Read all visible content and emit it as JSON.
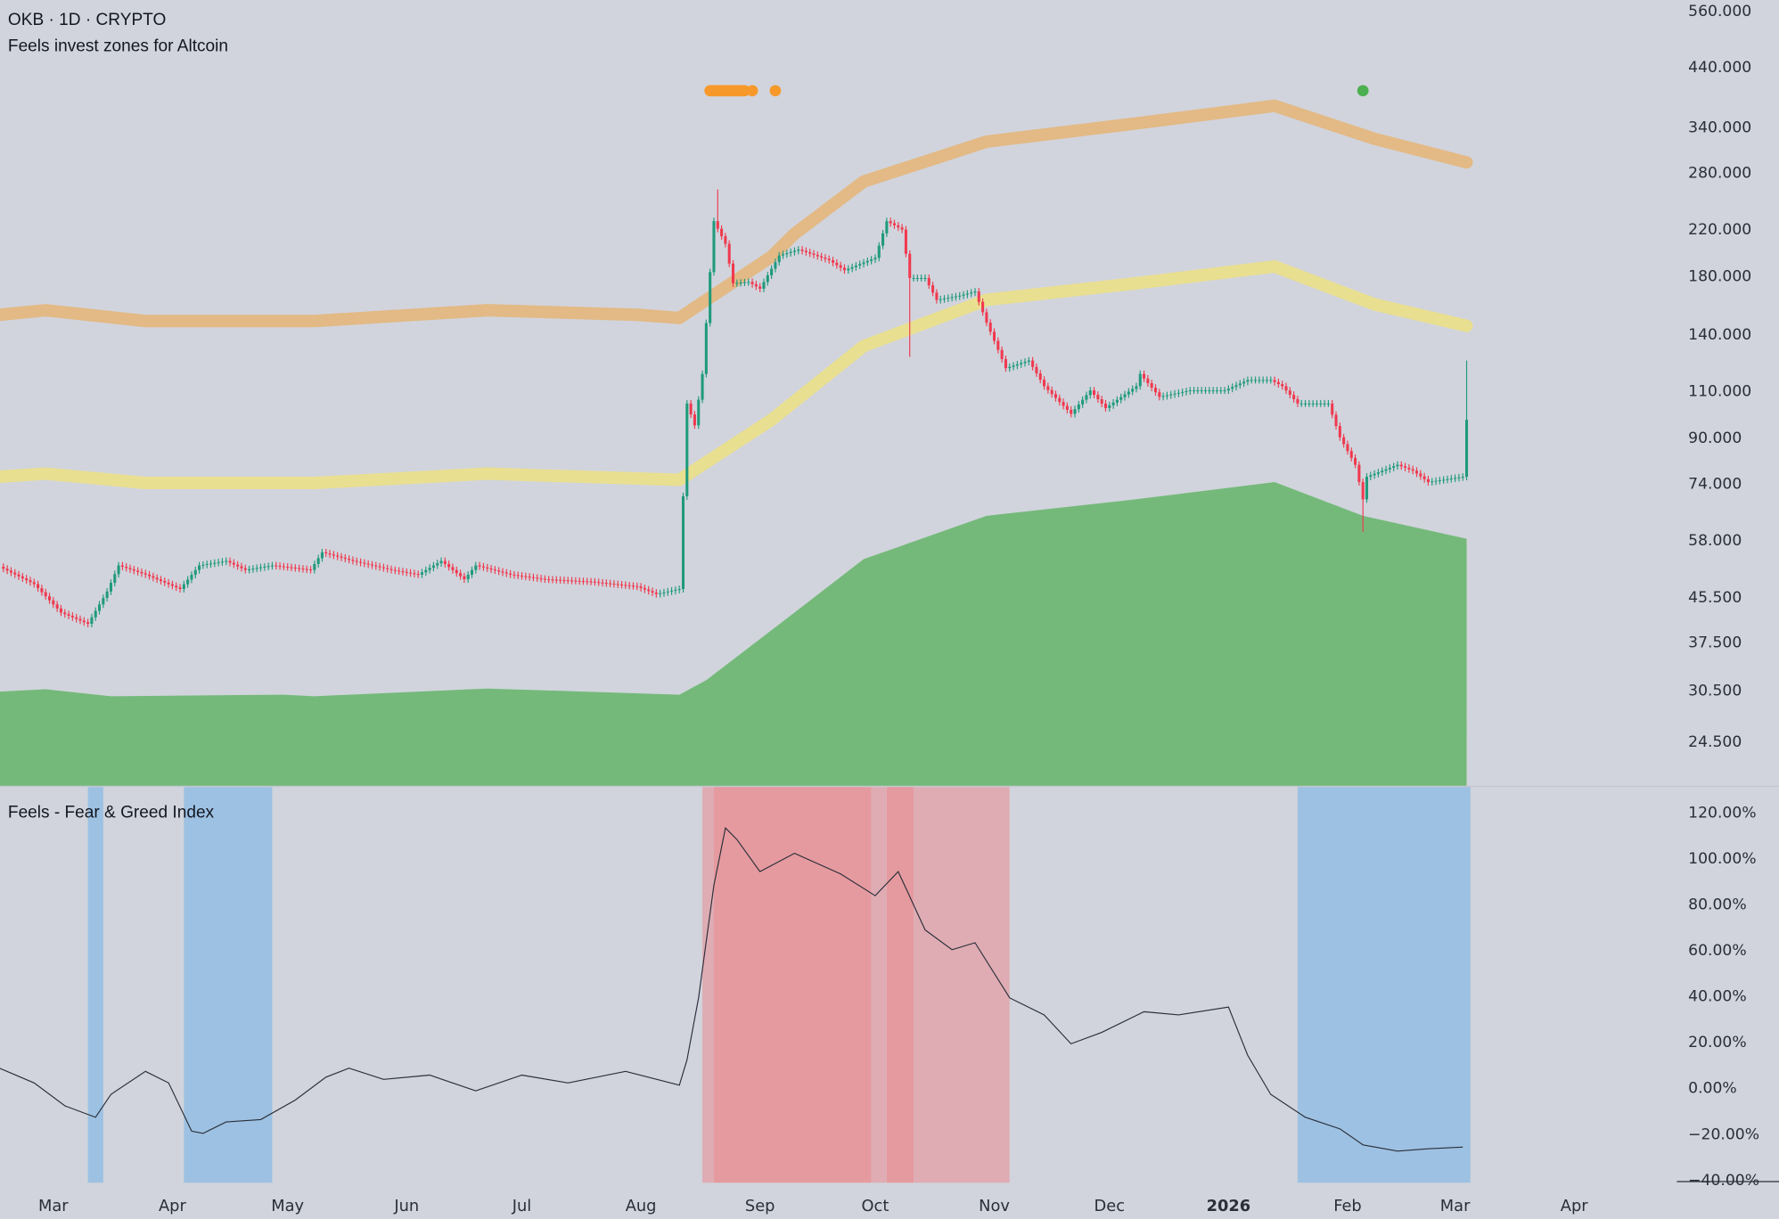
{
  "header": {
    "symbol_line": "OKB · 1D · CRYPTO",
    "indicator_title": "Feels invest zones for Altcoin"
  },
  "lower_pane": {
    "title": "Feels - Fear & Greed Index"
  },
  "colors": {
    "background": "#d1d4dc",
    "candle_up": "#1f9a7c",
    "candle_down": "#f0394f",
    "upper_band": "#e3b985",
    "middle_band": "#e9df91",
    "lower_zone_fill": "#74b97a",
    "marker_orange": "#f7992a",
    "marker_green": "#4caf50",
    "zone_blue": "#9dc1e2",
    "zone_red_dark": "#e59a9f",
    "zone_red_light": "#dfacb4",
    "fg_line": "#2a2e39"
  },
  "chart_data": [
    {
      "type": "candlestick",
      "title": "OKB · 1D · CRYPTO",
      "y_scale": "log",
      "ylim": [
        22,
        580
      ],
      "y_ticks": [
        "560.000",
        "440.000",
        "340.000",
        "280.000",
        "220.000",
        "180.000",
        "140.000",
        "110.000",
        "90.000",
        "74.000",
        "58.000",
        "45.500",
        "37.500",
        "30.500",
        "24.500"
      ],
      "x_ticks": [
        {
          "label": "Mar",
          "date": "2025-03-01",
          "bold": false
        },
        {
          "label": "Apr",
          "date": "2025-04-01",
          "bold": false
        },
        {
          "label": "May",
          "date": "2025-05-01",
          "bold": false
        },
        {
          "label": "Jun",
          "date": "2025-06-01",
          "bold": false
        },
        {
          "label": "Jul",
          "date": "2025-07-01",
          "bold": false
        },
        {
          "label": "Aug",
          "date": "2025-08-01",
          "bold": false
        },
        {
          "label": "Sep",
          "date": "2025-09-01",
          "bold": false
        },
        {
          "label": "Oct",
          "date": "2025-10-01",
          "bold": false
        },
        {
          "label": "Nov",
          "date": "2025-11-01",
          "bold": false
        },
        {
          "label": "Dec",
          "date": "2025-12-01",
          "bold": false
        },
        {
          "label": "2026",
          "date": "2026-01-01",
          "bold": true
        },
        {
          "label": "Feb",
          "date": "2026-02-01",
          "bold": false
        },
        {
          "label": "Mar",
          "date": "2026-03-01",
          "bold": false
        },
        {
          "label": "Apr",
          "date": "2026-04-01",
          "bold": false
        }
      ],
      "close": [
        [
          "2025-02-15",
          51.7
        ],
        [
          "2025-02-24",
          48
        ],
        [
          "2025-03-03",
          42.5
        ],
        [
          "2025-03-10",
          40.5
        ],
        [
          "2025-03-15",
          46.5
        ],
        [
          "2025-03-18",
          52
        ],
        [
          "2025-03-25",
          50
        ],
        [
          "2025-04-03",
          47
        ],
        [
          "2025-04-08",
          52
        ],
        [
          "2025-04-15",
          53
        ],
        [
          "2025-04-20",
          51
        ],
        [
          "2025-04-27",
          52
        ],
        [
          "2025-05-07",
          51
        ],
        [
          "2025-05-10",
          55
        ],
        [
          "2025-05-18",
          53
        ],
        [
          "2025-05-28",
          51
        ],
        [
          "2025-06-04",
          50
        ],
        [
          "2025-06-10",
          53
        ],
        [
          "2025-06-16",
          49
        ],
        [
          "2025-06-19",
          52
        ],
        [
          "2025-06-28",
          50
        ],
        [
          "2025-07-07",
          49
        ],
        [
          "2025-07-19",
          48.5
        ],
        [
          "2025-07-31",
          47.5
        ],
        [
          "2025-08-05",
          46
        ],
        [
          "2025-08-11",
          47
        ],
        [
          "2025-08-13",
          104
        ],
        [
          "2025-08-15",
          94.7
        ],
        [
          "2025-08-17",
          118
        ],
        [
          "2025-08-20",
          227
        ],
        [
          "2025-08-23",
          206
        ],
        [
          "2025-08-25",
          174
        ],
        [
          "2025-08-29",
          175
        ],
        [
          "2025-09-01",
          170
        ],
        [
          "2025-09-06",
          196
        ],
        [
          "2025-09-11",
          201
        ],
        [
          "2025-09-19",
          192
        ],
        [
          "2025-09-23",
          184
        ],
        [
          "2025-10-01",
          194
        ],
        [
          "2025-10-04",
          227
        ],
        [
          "2025-10-08",
          219
        ],
        [
          "2025-10-10",
          178
        ],
        [
          "2025-10-14",
          178
        ],
        [
          "2025-10-17",
          162
        ],
        [
          "2025-10-23",
          165
        ],
        [
          "2025-10-27",
          168
        ],
        [
          "2025-10-30",
          147
        ],
        [
          "2025-11-04",
          121
        ],
        [
          "2025-11-10",
          125
        ],
        [
          "2025-11-14",
          112
        ],
        [
          "2025-11-21",
          99.5
        ],
        [
          "2025-11-26",
          110
        ],
        [
          "2025-11-30",
          102
        ],
        [
          "2025-12-08",
          112
        ],
        [
          "2025-12-09",
          118
        ],
        [
          "2025-12-14",
          107
        ],
        [
          "2025-12-22",
          110
        ],
        [
          "2025-12-31",
          110
        ],
        [
          "2026-01-06",
          115
        ],
        [
          "2026-01-12",
          115
        ],
        [
          "2026-01-15",
          112
        ],
        [
          "2026-01-19",
          104
        ],
        [
          "2026-01-27",
          104
        ],
        [
          "2026-01-30",
          90
        ],
        [
          "2026-02-03",
          80
        ],
        [
          "2026-02-05",
          69
        ],
        [
          "2026-02-06",
          76
        ],
        [
          "2026-02-14",
          80
        ],
        [
          "2026-02-18",
          78
        ],
        [
          "2026-02-22",
          74.3
        ],
        [
          "2026-03-03",
          76
        ],
        [
          "2026-03-04",
          97
        ]
      ],
      "notable_wicks": [
        {
          "date": "2025-08-21",
          "high": 260
        },
        {
          "date": "2025-10-10",
          "low": 127
        },
        {
          "date": "2026-02-05",
          "low": 60
        },
        {
          "date": "2026-03-04",
          "high": 125
        }
      ],
      "series": [
        {
          "kind": "upper_band",
          "points": [
            [
              "2025-02-15",
              152
            ],
            [
              "2025-02-27",
              155
            ],
            [
              "2025-03-25",
              148
            ],
            [
              "2025-05-08",
              148
            ],
            [
              "2025-06-22",
              155
            ],
            [
              "2025-07-31",
              152
            ],
            [
              "2025-08-11",
              150
            ],
            [
              "2025-09-04",
              195
            ],
            [
              "2025-09-10",
              215
            ],
            [
              "2025-09-28",
              269
            ],
            [
              "2025-10-30",
              319
            ],
            [
              "2025-12-08",
              345
            ],
            [
              "2026-01-13",
              372
            ],
            [
              "2026-02-08",
              323
            ],
            [
              "2026-03-04",
              292
            ]
          ]
        },
        {
          "kind": "middle_band",
          "points": [
            [
              "2025-02-15",
              76
            ],
            [
              "2025-02-27",
              77
            ],
            [
              "2025-03-25",
              74
            ],
            [
              "2025-05-08",
              74
            ],
            [
              "2025-06-22",
              77
            ],
            [
              "2025-08-11",
              75
            ],
            [
              "2025-09-04",
              97
            ],
            [
              "2025-09-28",
              133
            ],
            [
              "2025-10-30",
              162
            ],
            [
              "2025-12-08",
              174
            ],
            [
              "2026-01-13",
              187
            ],
            [
              "2026-02-08",
              159
            ],
            [
              "2026-03-04",
              145
            ]
          ]
        },
        {
          "kind": "lower_zone",
          "points": [
            [
              "2025-02-15",
              30.3
            ],
            [
              "2025-02-27",
              30.6
            ],
            [
              "2025-03-16",
              29.7
            ],
            [
              "2025-04-30",
              29.9
            ],
            [
              "2025-05-08",
              29.7
            ],
            [
              "2025-06-22",
              30.7
            ],
            [
              "2025-08-11",
              29.9
            ],
            [
              "2025-08-18",
              31.8
            ],
            [
              "2025-09-10",
              42.5
            ],
            [
              "2025-09-28",
              53.4
            ],
            [
              "2025-10-30",
              64.3
            ],
            [
              "2025-12-08",
              69
            ],
            [
              "2026-01-13",
              74.3
            ],
            [
              "2026-02-05",
              64.3
            ],
            [
              "2026-03-04",
              58.3
            ]
          ]
        }
      ],
      "markers": [
        {
          "color": "orange",
          "from": "2025-08-19",
          "to": "2025-08-28"
        },
        {
          "color": "orange",
          "from": "2025-08-30",
          "to": "2025-08-30"
        },
        {
          "color": "orange",
          "from": "2025-09-05",
          "to": "2025-09-05"
        },
        {
          "color": "green",
          "from": "2026-02-05",
          "to": "2026-02-05"
        }
      ]
    },
    {
      "type": "line",
      "title": "Feels - Fear & Greed Index",
      "ylim": [
        -40,
        125
      ],
      "y_ticks": [
        "120.00%",
        "100.00%",
        "80.00%",
        "60.00%",
        "40.00%",
        "20.00%",
        "0.00%",
        "−20.00%",
        "−40.00%"
      ],
      "values": [
        [
          "2025-02-15",
          8.4
        ],
        [
          "2025-02-24",
          2
        ],
        [
          "2025-03-04",
          -8
        ],
        [
          "2025-03-12",
          -13
        ],
        [
          "2025-03-16",
          -3
        ],
        [
          "2025-03-25",
          7
        ],
        [
          "2025-03-31",
          2
        ],
        [
          "2025-04-06",
          -19
        ],
        [
          "2025-04-09",
          -20
        ],
        [
          "2025-04-15",
          -15
        ],
        [
          "2025-04-24",
          -14
        ],
        [
          "2025-05-03",
          -5.5
        ],
        [
          "2025-05-11",
          4.5
        ],
        [
          "2025-05-17",
          8.4
        ],
        [
          "2025-05-26",
          3.5
        ],
        [
          "2025-06-07",
          5.4
        ],
        [
          "2025-06-19",
          -1.5
        ],
        [
          "2025-07-01",
          5.4
        ],
        [
          "2025-07-13",
          2
        ],
        [
          "2025-07-28",
          7
        ],
        [
          "2025-08-11",
          1
        ],
        [
          "2025-08-13",
          12
        ],
        [
          "2025-08-16",
          39
        ],
        [
          "2025-08-20",
          88
        ],
        [
          "2025-08-23",
          113
        ],
        [
          "2025-08-26",
          108
        ],
        [
          "2025-09-01",
          94
        ],
        [
          "2025-09-10",
          102
        ],
        [
          "2025-09-22",
          93
        ],
        [
          "2025-10-01",
          83.5
        ],
        [
          "2025-10-07",
          94
        ],
        [
          "2025-10-14",
          68.6
        ],
        [
          "2025-10-21",
          60
        ],
        [
          "2025-10-27",
          63
        ],
        [
          "2025-11-05",
          39
        ],
        [
          "2025-11-14",
          31.6
        ],
        [
          "2025-11-21",
          19
        ],
        [
          "2025-11-29",
          24
        ],
        [
          "2025-12-10",
          33
        ],
        [
          "2025-12-19",
          31.6
        ],
        [
          "2026-01-01",
          35
        ],
        [
          "2026-01-06",
          14
        ],
        [
          "2026-01-12",
          -3
        ],
        [
          "2026-01-21",
          -13
        ],
        [
          "2026-01-30",
          -18
        ],
        [
          "2026-02-05",
          -25
        ],
        [
          "2026-02-14",
          -27.7
        ],
        [
          "2026-02-22",
          -26.7
        ],
        [
          "2026-03-03",
          -26
        ]
      ],
      "zones": [
        {
          "color": "blue",
          "from": "2025-03-10",
          "to": "2025-03-14"
        },
        {
          "color": "blue",
          "from": "2025-04-04",
          "to": "2025-04-27"
        },
        {
          "color": "red_light",
          "from": "2025-08-17",
          "to": "2025-08-20"
        },
        {
          "color": "red_dark",
          "from": "2025-08-20",
          "to": "2025-09-30"
        },
        {
          "color": "red_light",
          "from": "2025-09-30",
          "to": "2025-10-04"
        },
        {
          "color": "red_dark",
          "from": "2025-10-04",
          "to": "2025-10-11"
        },
        {
          "color": "red_light",
          "from": "2025-10-11",
          "to": "2025-11-05"
        },
        {
          "color": "blue",
          "from": "2026-01-19",
          "to": "2026-03-05"
        }
      ]
    }
  ]
}
